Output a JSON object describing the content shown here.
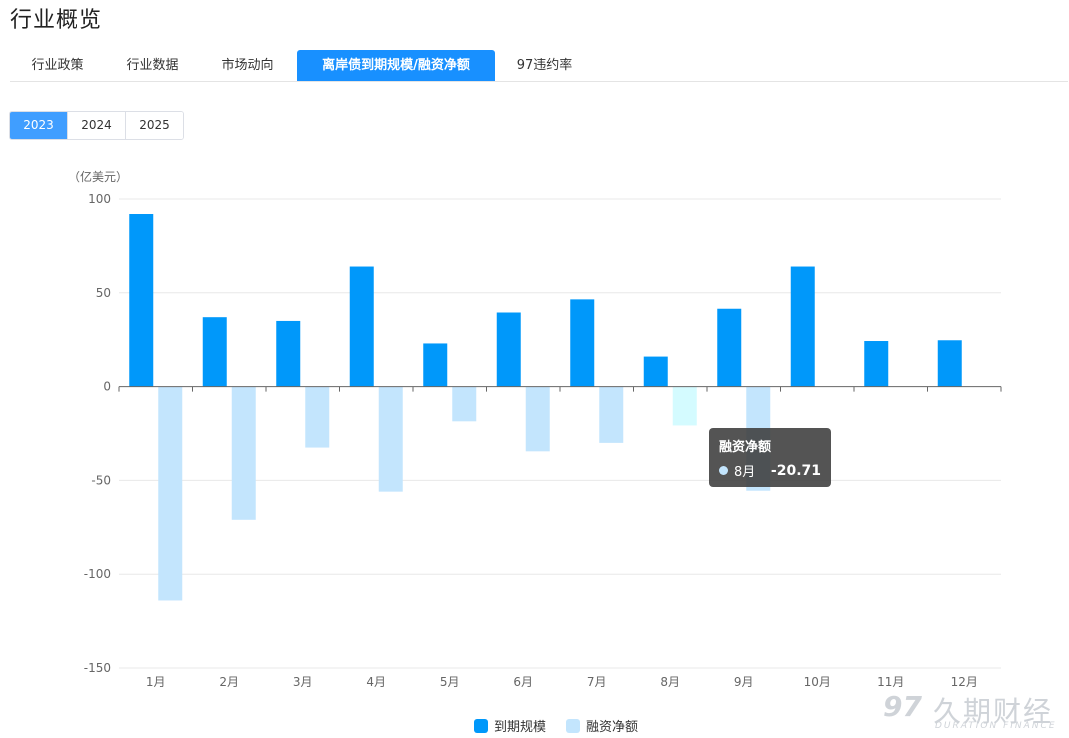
{
  "page": {
    "title": "行业概览"
  },
  "tabs": [
    {
      "label": "行业政策",
      "active": false
    },
    {
      "label": "行业数据",
      "active": false
    },
    {
      "label": "市场动向",
      "active": false
    },
    {
      "label": "离岸债到期规模/融资净额",
      "active": true
    },
    {
      "label": "97违约率",
      "active": false
    }
  ],
  "years": [
    {
      "label": "2023",
      "active": true
    },
    {
      "label": "2024",
      "active": false
    },
    {
      "label": "2025",
      "active": false
    }
  ],
  "chart_data": {
    "type": "bar",
    "unit_label": "（亿美元）",
    "categories": [
      "1月",
      "2月",
      "3月",
      "4月",
      "5月",
      "6月",
      "7月",
      "8月",
      "9月",
      "10月",
      "11月",
      "12月"
    ],
    "series": [
      {
        "name": "到期规模",
        "color": "#0098fa",
        "values": [
          92,
          37,
          35,
          64,
          23,
          39.5,
          46.5,
          16,
          41.5,
          64,
          24.3,
          24.7
        ]
      },
      {
        "name": "融资净额",
        "color": "#c3e5fd",
        "highlight_color": "#d4fbff",
        "values": [
          -114,
          -71,
          -32.5,
          -56,
          -18.5,
          -34.5,
          -30,
          -20.71,
          -55.5,
          null,
          null,
          null
        ]
      }
    ],
    "ylim": [
      -150,
      100
    ],
    "yticks": [
      100,
      50,
      0,
      -50,
      -100,
      -150
    ],
    "highlighted": {
      "series": "融资净额",
      "category": "8月"
    },
    "grid": true,
    "legend": "bottom-center"
  },
  "tooltip": {
    "title": "融资净额",
    "label": "8月",
    "value": "-20.71"
  },
  "watermark": {
    "logo": "97",
    "name": "久期财经",
    "sub": "DURATION FINANCE"
  }
}
